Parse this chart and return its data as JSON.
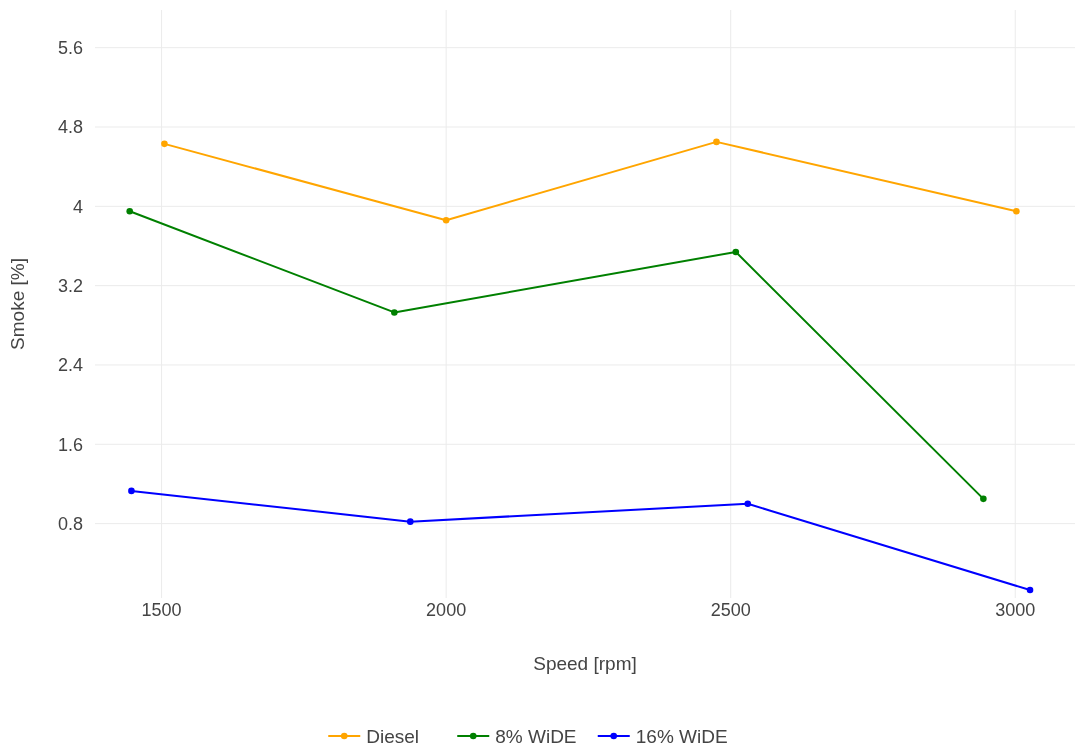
{
  "chart_data": {
    "type": "line",
    "xlabel": "Speed [rpm]",
    "ylabel": "Smoke [%]",
    "xlim": [
      1383,
      3105
    ],
    "xticks": [
      1500,
      2000,
      2500,
      3000
    ],
    "ylim": [
      0.05,
      5.98
    ],
    "yticks": [
      0.8,
      1.6,
      2.4,
      3.2,
      4,
      4.8,
      5.6
    ],
    "grid": true,
    "legend": "bottom",
    "marker": "circle",
    "line_style": "solid",
    "series": [
      {
        "name": "Diesel",
        "color": "#ffa500",
        "x": [
          1505,
          2000,
          2475,
          3002
        ],
        "values": [
          4.63,
          3.86,
          4.65,
          3.95
        ]
      },
      {
        "name": "8% WiDE",
        "color": "#008000",
        "x": [
          1444,
          1909,
          2509,
          2944
        ],
        "values": [
          3.95,
          2.93,
          3.54,
          1.05
        ]
      },
      {
        "name": "16% WiDE",
        "color": "#0000ff",
        "x": [
          1447,
          1937,
          2530,
          3026
        ],
        "values": [
          1.13,
          0.82,
          1.0,
          0.13
        ]
      }
    ]
  }
}
